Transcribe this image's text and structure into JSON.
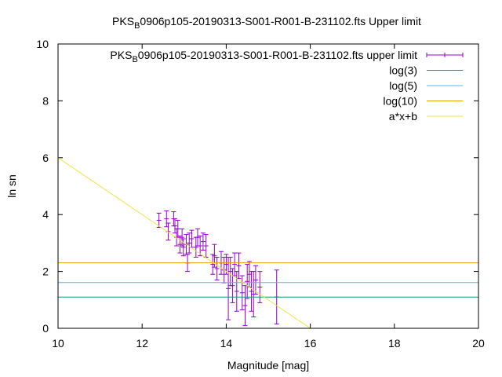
{
  "chart_data": {
    "type": "scatter",
    "title": {
      "prefix": "PKS",
      "subscript": "B",
      "suffix": "0906p105-20190313-S001-R001-B-231102.fts Upper limit"
    },
    "xlabel": "Magnitude [mag]",
    "ylabel": "ln sn",
    "xlim": [
      10,
      20
    ],
    "ylim": [
      0,
      10
    ],
    "xticks": [
      10,
      12,
      14,
      16,
      18,
      20
    ],
    "yticks": [
      0,
      2,
      4,
      6,
      8,
      10
    ],
    "grid": false,
    "legend_position": "top-right",
    "series": [
      {
        "name": {
          "prefix": "PKS",
          "subscript": "B",
          "suffix": "0906p105-20190313-S001-R001-B-231102.fts upper limit"
        },
        "kind": "errorbar",
        "color": "#9400d3",
        "points": [
          {
            "x": 12.4,
            "y": 3.8,
            "err": 0.25
          },
          {
            "x": 12.58,
            "y": 3.85,
            "err": 0.28
          },
          {
            "x": 12.62,
            "y": 3.4,
            "err": 0.3
          },
          {
            "x": 12.75,
            "y": 3.85,
            "err": 0.25
          },
          {
            "x": 12.78,
            "y": 3.6,
            "err": 0.25
          },
          {
            "x": 12.82,
            "y": 3.2,
            "err": 0.3
          },
          {
            "x": 12.85,
            "y": 3.5,
            "err": 0.3
          },
          {
            "x": 12.9,
            "y": 2.95,
            "err": 0.3
          },
          {
            "x": 12.95,
            "y": 3.2,
            "err": 0.3
          },
          {
            "x": 12.98,
            "y": 2.85,
            "err": 0.3
          },
          {
            "x": 13.05,
            "y": 2.95,
            "err": 0.35
          },
          {
            "x": 13.08,
            "y": 2.3,
            "err": 0.3
          },
          {
            "x": 13.12,
            "y": 3.0,
            "err": 0.35
          },
          {
            "x": 13.18,
            "y": 3.15,
            "err": 0.3
          },
          {
            "x": 13.28,
            "y": 2.85,
            "err": 0.35
          },
          {
            "x": 13.32,
            "y": 3.2,
            "err": 0.3
          },
          {
            "x": 13.38,
            "y": 2.9,
            "err": 0.35
          },
          {
            "x": 13.45,
            "y": 3.05,
            "err": 0.3
          },
          {
            "x": 13.52,
            "y": 2.9,
            "err": 0.4
          },
          {
            "x": 13.68,
            "y": 2.25,
            "err": 0.35
          },
          {
            "x": 13.72,
            "y": 2.55,
            "err": 0.4
          },
          {
            "x": 13.78,
            "y": 2.1,
            "err": 0.4
          },
          {
            "x": 13.88,
            "y": 2.3,
            "err": 0.4
          },
          {
            "x": 13.95,
            "y": 2.05,
            "err": 0.45
          },
          {
            "x": 14.0,
            "y": 2.25,
            "err": 0.35
          },
          {
            "x": 14.05,
            "y": 1.4,
            "err": 1.1
          },
          {
            "x": 14.1,
            "y": 2.0,
            "err": 0.5
          },
          {
            "x": 14.15,
            "y": 1.5,
            "err": 0.6
          },
          {
            "x": 14.2,
            "y": 2.25,
            "err": 0.4
          },
          {
            "x": 14.25,
            "y": 1.3,
            "err": 0.7
          },
          {
            "x": 14.3,
            "y": 2.2,
            "err": 0.45
          },
          {
            "x": 14.38,
            "y": 1.25,
            "err": 0.6
          },
          {
            "x": 14.45,
            "y": 0.8,
            "err": 0.7
          },
          {
            "x": 14.5,
            "y": 1.65,
            "err": 0.6
          },
          {
            "x": 14.55,
            "y": 1.9,
            "err": 0.45
          },
          {
            "x": 14.6,
            "y": 1.3,
            "err": 0.7
          },
          {
            "x": 14.65,
            "y": 1.2,
            "err": 0.8
          },
          {
            "x": 14.7,
            "y": 1.7,
            "err": 0.5
          },
          {
            "x": 14.8,
            "y": 1.45,
            "err": 0.55
          },
          {
            "x": 15.2,
            "y": 1.1,
            "err": 0.95
          }
        ]
      },
      {
        "name": "log(3)",
        "kind": "hline",
        "y": 1.0986,
        "color": "#009e73"
      },
      {
        "name": "log(5)",
        "kind": "hline",
        "y": 1.6094,
        "color": "#56b4e9"
      },
      {
        "name": "log(10)",
        "kind": "hline",
        "y": 2.3026,
        "color": "#e69f00"
      },
      {
        "name": "a*x+b",
        "kind": "line",
        "color": "#f0e442",
        "x": [
          10,
          16
        ],
        "y": [
          6.0,
          0.0
        ]
      }
    ]
  }
}
